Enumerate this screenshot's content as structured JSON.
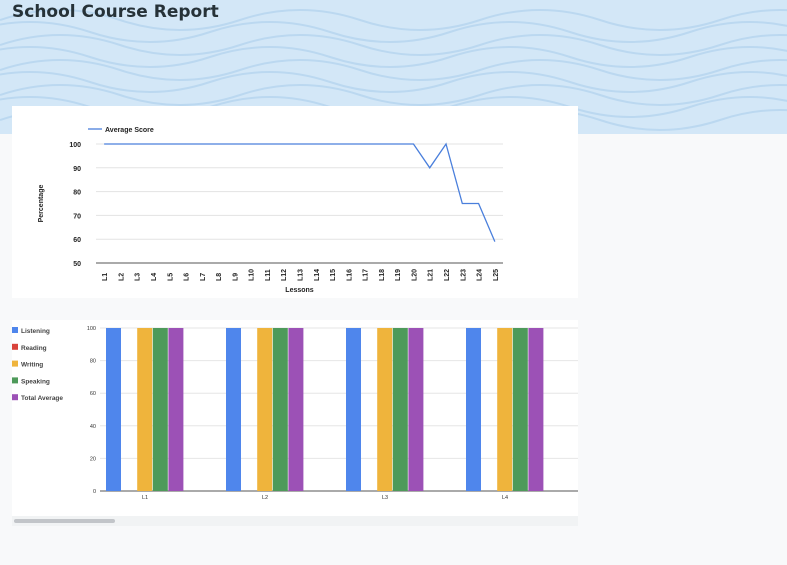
{
  "page": {
    "title": "School Course Report"
  },
  "chart_data": [
    {
      "type": "line",
      "xlabel": "Lessons",
      "ylabel": "Percentage",
      "ylim": [
        50,
        100
      ],
      "y_ticks": [
        50,
        60,
        70,
        80,
        90,
        100
      ],
      "grid": true,
      "legend_position": "top-left",
      "categories": [
        "L1",
        "L2",
        "L3",
        "L4",
        "L5",
        "L6",
        "L7",
        "L8",
        "L9",
        "L10",
        "L11",
        "L12",
        "L13",
        "L14",
        "L15",
        "L16",
        "L17",
        "L18",
        "L19",
        "L20",
        "L21",
        "L22",
        "L23",
        "L24",
        "L25"
      ],
      "series": [
        {
          "name": "Average Score",
          "color": "#4a7fdc",
          "values": [
            100,
            100,
            100,
            100,
            100,
            100,
            100,
            100,
            100,
            100,
            100,
            100,
            100,
            100,
            100,
            100,
            100,
            100,
            100,
            100,
            90,
            100,
            75,
            75,
            59
          ]
        }
      ]
    },
    {
      "type": "bar",
      "ylim": [
        0,
        100
      ],
      "y_ticks": [
        0,
        20,
        40,
        60,
        80,
        100
      ],
      "grid": true,
      "legend_position": "left",
      "categories": [
        "L1",
        "L2",
        "L3",
        "L4"
      ],
      "series": [
        {
          "name": "Listening",
          "color": "#4f86ec",
          "values": [
            100,
            100,
            100,
            100
          ]
        },
        {
          "name": "Reading",
          "color": "#d9433b",
          "values": [
            0,
            0,
            0,
            0
          ]
        },
        {
          "name": "Writing",
          "color": "#efb43c",
          "values": [
            100,
            100,
            100,
            100
          ]
        },
        {
          "name": "Speaking",
          "color": "#4e9a5a",
          "values": [
            100,
            100,
            100,
            100
          ]
        },
        {
          "name": "Total Average",
          "color": "#9c51b6",
          "values": [
            100,
            100,
            100,
            100
          ]
        }
      ]
    }
  ]
}
